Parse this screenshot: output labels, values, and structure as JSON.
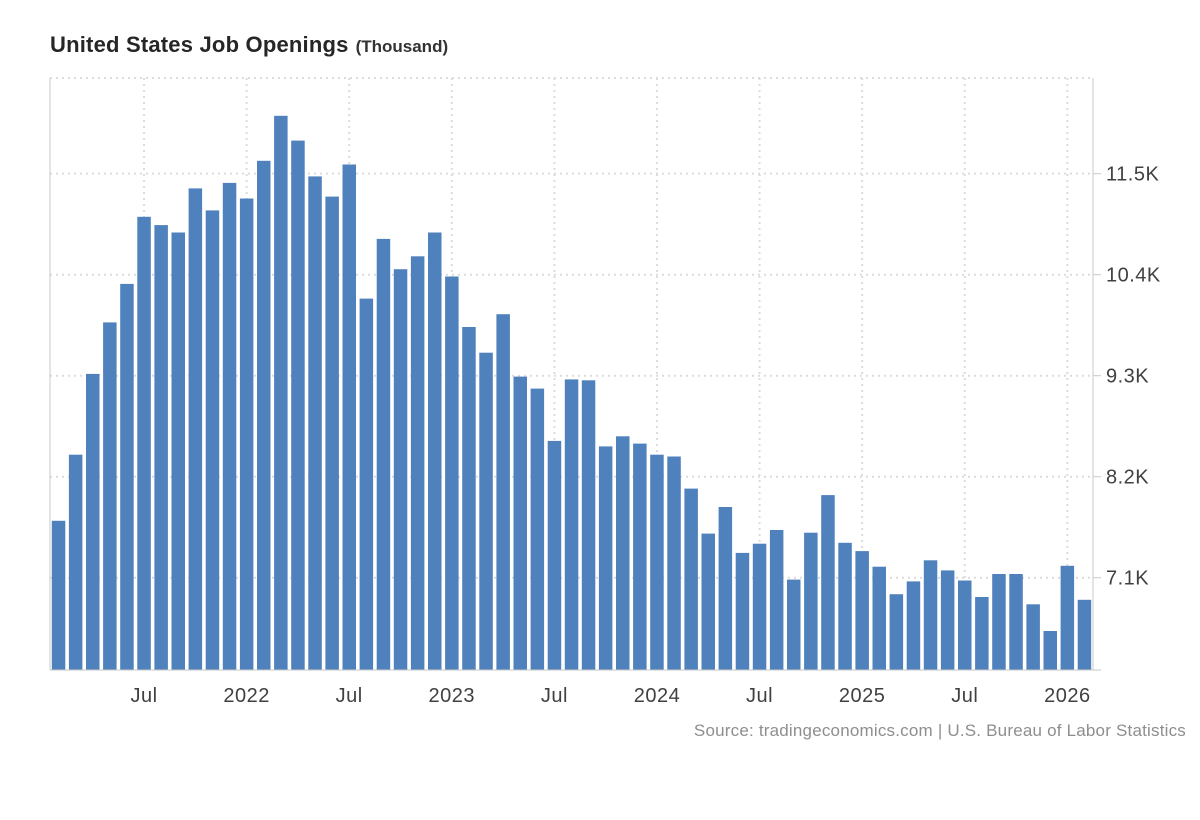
{
  "header": {
    "title": "United States Job Openings",
    "unit": "(Thousand)"
  },
  "source": "Source: tradingeconomics.com | U.S. Bureau of Labor Statistics",
  "colors": {
    "bar": "#4f81bd",
    "grid": "#dcdcdc",
    "axis": "#c8c8c8",
    "tick_label": "#404040",
    "title": "#262626",
    "source_text": "#8e8e8e",
    "background": "#ffffff"
  },
  "chart_data": {
    "type": "bar",
    "title": "United States Job Openings",
    "ylabel": "Thousand",
    "xlabel": "",
    "legend": false,
    "grid": "dotted",
    "ylim": [
      6095,
      12542
    ],
    "x": [
      "Feb 2021",
      "Mar 2021",
      "Apr 2021",
      "May 2021",
      "Jun 2021",
      "Jul 2021",
      "Aug 2021",
      "Sep 2021",
      "Oct 2021",
      "Nov 2021",
      "Dec 2021",
      "Jan 2022",
      "Feb 2022",
      "Mar 2022",
      "Apr 2022",
      "May 2022",
      "Jun 2022",
      "Jul 2022",
      "Aug 2022",
      "Sep 2022",
      "Oct 2022",
      "Nov 2022",
      "Dec 2022",
      "Jan 2023",
      "Feb 2023",
      "Mar 2023",
      "Apr 2023",
      "May 2023",
      "Jun 2023",
      "Jul 2023",
      "Aug 2023",
      "Sep 2023",
      "Oct 2023",
      "Nov 2023",
      "Dec 2023",
      "Jan 2024",
      "Feb 2024",
      "Mar 2024",
      "Apr 2024",
      "May 2024",
      "Jun 2024",
      "Jul 2024",
      "Aug 2024",
      "Sep 2024",
      "Oct 2024",
      "Nov 2024",
      "Dec 2024",
      "Jan 2025",
      "Feb 2025",
      "Mar 2025",
      "Apr 2025",
      "May 2025",
      "Jun 2025",
      "Jul 2025",
      "Aug 2025",
      "Sep 2025",
      "Oct 2025",
      "Nov 2025",
      "Dec 2025",
      "Jan 2026",
      "Feb 2026"
    ],
    "values": [
      7720,
      8440,
      9320,
      9880,
      10300,
      11030,
      10940,
      10860,
      11340,
      11100,
      11400,
      11230,
      11640,
      12130,
      11860,
      11470,
      11250,
      11600,
      10140,
      10790,
      10460,
      10600,
      10860,
      10380,
      9830,
      9550,
      9970,
      9290,
      9160,
      8590,
      9260,
      9250,
      8530,
      8640,
      8560,
      8440,
      8420,
      8070,
      7580,
      7870,
      7370,
      7470,
      7620,
      7080,
      7590,
      8000,
      7480,
      7390,
      7220,
      6920,
      7060,
      7290,
      7180,
      7070,
      6890,
      7140,
      7140,
      6810,
      6520,
      7230,
      6860
    ],
    "y_axis": {
      "side": "right",
      "ticks": [
        {
          "value": 11500,
          "label": "11.5K"
        },
        {
          "value": 10400,
          "label": "10.4K"
        },
        {
          "value": 9300,
          "label": "9.3K"
        },
        {
          "value": 8200,
          "label": "8.2K"
        },
        {
          "value": 7100,
          "label": "7.1K"
        }
      ]
    },
    "x_axis": {
      "ticks": [
        {
          "index": 5,
          "label": "Jul"
        },
        {
          "index": 11,
          "label": "2022"
        },
        {
          "index": 17,
          "label": "Jul"
        },
        {
          "index": 23,
          "label": "2023"
        },
        {
          "index": 29,
          "label": "Jul"
        },
        {
          "index": 35,
          "label": "2024"
        },
        {
          "index": 41,
          "label": "Jul"
        },
        {
          "index": 47,
          "label": "2025"
        },
        {
          "index": 53,
          "label": "Jul"
        },
        {
          "index": 59,
          "label": "2026"
        }
      ]
    }
  }
}
